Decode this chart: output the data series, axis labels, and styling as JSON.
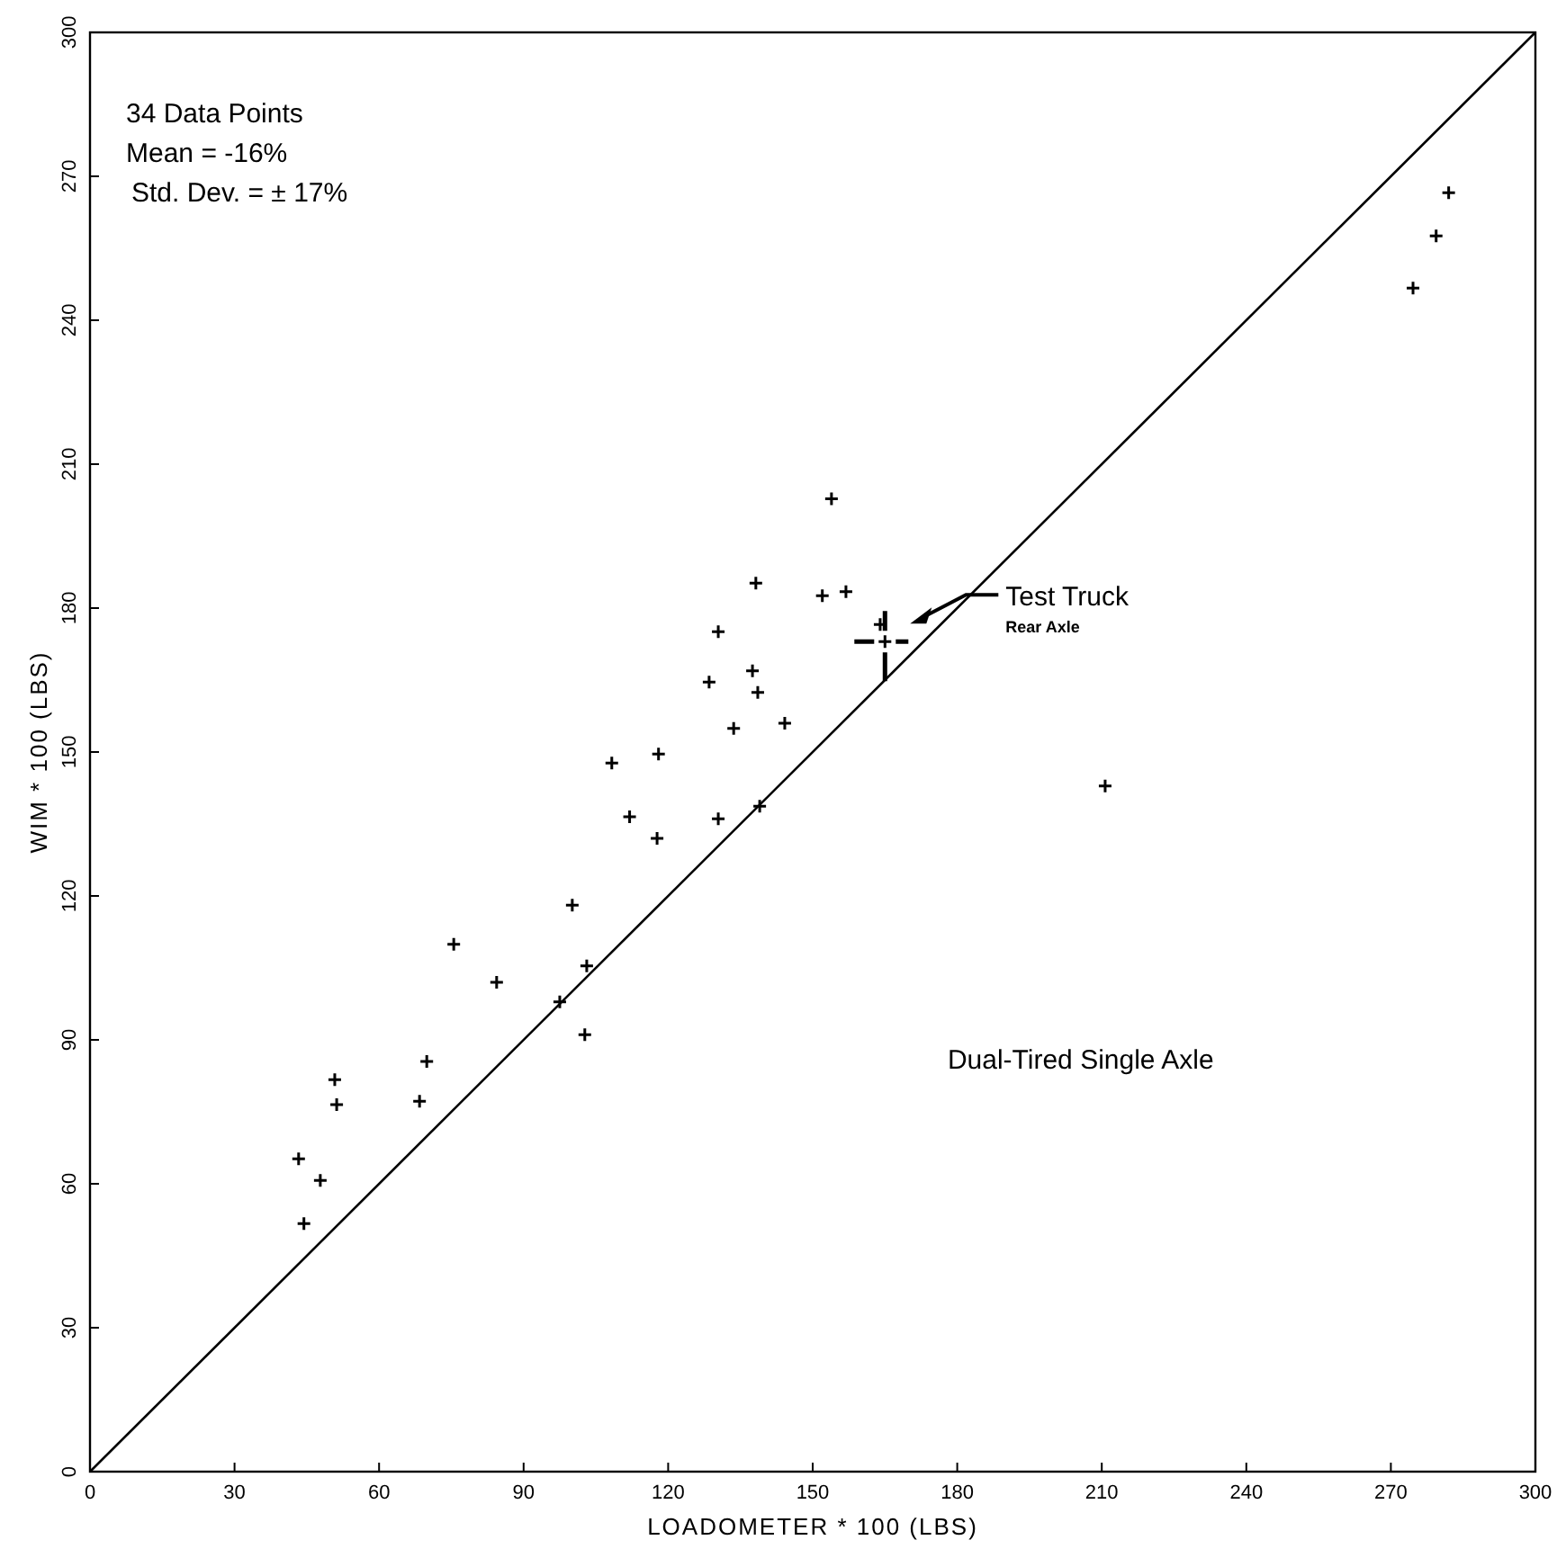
{
  "chart_data": {
    "type": "scatter",
    "xlabel": "LOADOMETER * 100 (LBS)",
    "ylabel": "WIM * 100 (LBS)",
    "xlim": [
      0,
      300
    ],
    "ylim": [
      0,
      300
    ],
    "xticks": [
      0,
      30,
      60,
      90,
      120,
      150,
      180,
      210,
      240,
      270,
      300
    ],
    "yticks": [
      0,
      30,
      60,
      90,
      120,
      150,
      180,
      210,
      240,
      270,
      300
    ],
    "marker": "cross",
    "grid": false,
    "series": [
      {
        "color": "#000000",
        "x": [
          153.9,
          138.2,
          152,
          156.9,
          130.4,
          164,
          137.5,
          128.5,
          138.6,
          133.6,
          144.2,
          118,
          108.3,
          112,
          130.4,
          117.7,
          139,
          100.1,
          75.5,
          103.1,
          84.4,
          97.5,
          102.7,
          69.9,
          50.8,
          51.2,
          68.4,
          43.3,
          47.8,
          44.4,
          210.7,
          274.6,
          279.4,
          282
        ],
        "values": [
          202.8,
          185.2,
          182.6,
          183.4,
          175.1,
          176.6,
          166.9,
          164.6,
          162.4,
          154.9,
          156,
          149.6,
          147.7,
          136.5,
          136.1,
          132,
          138.7,
          118.1,
          109.9,
          105.4,
          102,
          97.9,
          91.1,
          85.5,
          81.7,
          76.5,
          77.2,
          65.2,
          60.7,
          51.7,
          142.9,
          246.7,
          257.6,
          266.6
        ]
      },
      {
        "type": "scatter",
        "color": "#000000",
        "x": [
          165
        ],
        "values": [
          173
        ]
      },
      {
        "type": "line",
        "marker": "none",
        "color": "#000000",
        "x": [
          0,
          300
        ],
        "values": [
          0,
          300
        ]
      }
    ],
    "annotations": [
      "34 Data Points",
      "Mean = -16%",
      "Std. Dev. = ± 17%",
      "Test Truck",
      "Rear Axle",
      "Dual-Tired Single Axle"
    ]
  }
}
